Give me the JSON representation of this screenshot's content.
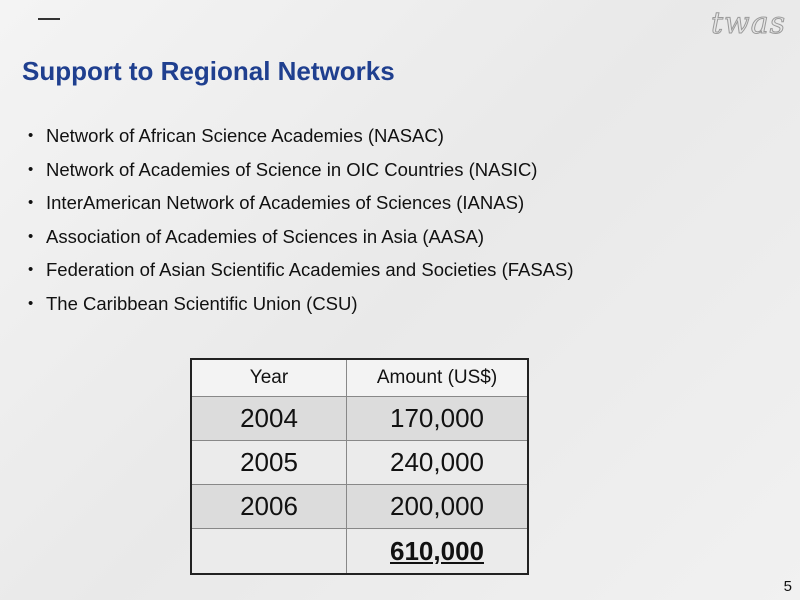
{
  "logo": "twas",
  "title": "Support to Regional Networks",
  "bullets": [
    "Network of African Science Academies (NASAC)",
    "Network of Academies of Science in OIC Countries (NASIC)",
    "InterAmerican Network of Academies of Sciences (IANAS)",
    "Association of Academies of Sciences in Asia (AASA)",
    "Federation of Asian Scientific Academies and Societies (FASAS)",
    "The Caribbean Scientific Union (CSU)"
  ],
  "table": {
    "header": [
      "Year",
      "Amount (US$)"
    ],
    "rows": [
      [
        "2004",
        "170,000"
      ],
      [
        "2005",
        "240,000"
      ],
      [
        "2006",
        "200,000"
      ]
    ],
    "total": "610,000"
  },
  "page_number": "5"
}
